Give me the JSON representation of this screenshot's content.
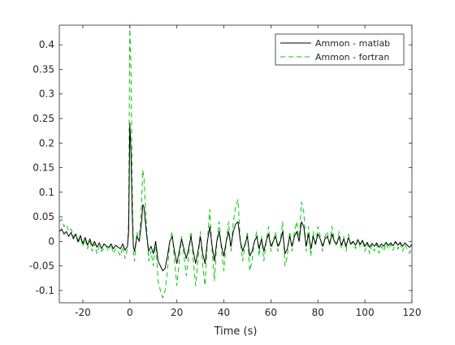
{
  "chart_data": {
    "type": "line",
    "title": "",
    "xlabel": "Time (s)",
    "ylabel": "",
    "xlim": [
      -30,
      120
    ],
    "ylim": [
      -0.125,
      0.44
    ],
    "xticks": [
      -20,
      0,
      20,
      40,
      60,
      80,
      100,
      120
    ],
    "yticks": [
      -0.1,
      -0.05,
      0,
      0.05,
      0.1,
      0.15,
      0.2,
      0.25,
      0.3,
      0.35,
      0.4
    ],
    "xtick_labels": [
      "-20",
      "0",
      "20",
      "40",
      "60",
      "80",
      "100",
      "120"
    ],
    "ytick_labels": [
      "-0.1",
      "-0.05",
      "0",
      "0.05",
      "0.1",
      "0.15",
      "0.2",
      "0.25",
      "0.3",
      "0.35",
      "0.4"
    ],
    "grid": false,
    "legend_position": "top-right",
    "series": [
      {
        "name": "Ammon - matlab",
        "color": "#000000",
        "linestyle": "solid",
        "points": [
          [
            -30,
            0.02
          ],
          [
            -29,
            0.025
          ],
          [
            -28,
            0.015
          ],
          [
            -27,
            0.02
          ],
          [
            -26,
            0.01
          ],
          [
            -25,
            0.018
          ],
          [
            -24,
            0.005
          ],
          [
            -23,
            0.015
          ],
          [
            -22,
            0.0
          ],
          [
            -21,
            0.012
          ],
          [
            -20,
            -0.005
          ],
          [
            -19,
            0.008
          ],
          [
            -18,
            -0.008
          ],
          [
            -17,
            0.005
          ],
          [
            -16,
            -0.01
          ],
          [
            -15,
            0.0
          ],
          [
            -14,
            -0.012
          ],
          [
            -13,
            -0.003
          ],
          [
            -12,
            -0.015
          ],
          [
            -11,
            -0.005
          ],
          [
            -10,
            -0.01
          ],
          [
            -9,
            -0.012
          ],
          [
            -8,
            -0.005
          ],
          [
            -7,
            -0.015
          ],
          [
            -6,
            -0.008
          ],
          [
            -5,
            -0.012
          ],
          [
            -4,
            -0.015
          ],
          [
            -3,
            -0.005
          ],
          [
            -2,
            -0.018
          ],
          [
            -1,
            -0.01
          ],
          [
            -0.5,
            0.02
          ],
          [
            0,
            0.24
          ],
          [
            0.5,
            0.18
          ],
          [
            1,
            0.06
          ],
          [
            1.5,
            -0.01
          ],
          [
            2,
            -0.02
          ],
          [
            3,
            0.01
          ],
          [
            4,
            0.0
          ],
          [
            5,
            0.04
          ],
          [
            5.5,
            0.075
          ],
          [
            6,
            0.07
          ],
          [
            7,
            0.02
          ],
          [
            8,
            -0.02
          ],
          [
            9,
            -0.01
          ],
          [
            10,
            -0.025
          ],
          [
            11,
            0.0
          ],
          [
            12,
            -0.04
          ],
          [
            13,
            -0.05
          ],
          [
            14,
            -0.06
          ],
          [
            15,
            -0.055
          ],
          [
            16,
            -0.03
          ],
          [
            17,
            0.0
          ],
          [
            18,
            0.01
          ],
          [
            19,
            -0.02
          ],
          [
            20,
            -0.045
          ],
          [
            21,
            -0.02
          ],
          [
            22,
            0.005
          ],
          [
            23,
            -0.015
          ],
          [
            24,
            -0.035
          ],
          [
            25,
            -0.015
          ],
          [
            26,
            0.01
          ],
          [
            27,
            -0.02
          ],
          [
            28,
            -0.045
          ],
          [
            29,
            -0.02
          ],
          [
            30,
            0.01
          ],
          [
            31,
            -0.025
          ],
          [
            32,
            -0.045
          ],
          [
            33,
            0.0
          ],
          [
            34,
            0.03
          ],
          [
            35,
            -0.01
          ],
          [
            36,
            -0.04
          ],
          [
            37,
            0.0
          ],
          [
            38,
            0.02
          ],
          [
            39,
            -0.01
          ],
          [
            40,
            -0.03
          ],
          [
            41,
            0.0
          ],
          [
            42,
            0.02
          ],
          [
            43,
            -0.01
          ],
          [
            44,
            0.02
          ],
          [
            45,
            0.035
          ],
          [
            46,
            0.04
          ],
          [
            47,
            0.0
          ],
          [
            48,
            -0.02
          ],
          [
            49,
            -0.005
          ],
          [
            50,
            0.01
          ],
          [
            51,
            -0.03
          ],
          [
            52,
            -0.02
          ],
          [
            53,
            0.0
          ],
          [
            54,
            0.01
          ],
          [
            55,
            -0.015
          ],
          [
            56,
            0.005
          ],
          [
            57,
            -0.02
          ],
          [
            58,
            0.0
          ],
          [
            59,
            0.015
          ],
          [
            60,
            -0.01
          ],
          [
            61,
            0.0
          ],
          [
            62,
            0.01
          ],
          [
            63,
            -0.01
          ],
          [
            64,
            0.0
          ],
          [
            65,
            0.02
          ],
          [
            66,
            -0.025
          ],
          [
            67,
            -0.015
          ],
          [
            68,
            0.01
          ],
          [
            69,
            -0.01
          ],
          [
            70,
            0.01
          ],
          [
            71,
            0.02
          ],
          [
            72,
            0.0
          ],
          [
            73,
            0.04
          ],
          [
            74,
            0.03
          ],
          [
            75,
            -0.01
          ],
          [
            76,
            0.015
          ],
          [
            77,
            -0.015
          ],
          [
            78,
            0.01
          ],
          [
            79,
            -0.005
          ],
          [
            80,
            0.015
          ],
          [
            81,
            0.005
          ],
          [
            82,
            -0.01
          ],
          [
            83,
            0.005
          ],
          [
            84,
            0.01
          ],
          [
            85,
            -0.005
          ],
          [
            86,
            0.015
          ],
          [
            87,
            0.0
          ],
          [
            88,
            -0.005
          ],
          [
            89,
            0.01
          ],
          [
            90,
            -0.008
          ],
          [
            91,
            0.005
          ],
          [
            92,
            -0.01
          ],
          [
            93,
            0.008
          ],
          [
            94,
            -0.005
          ],
          [
            95,
            0.0
          ],
          [
            96,
            -0.008
          ],
          [
            97,
            0.003
          ],
          [
            98,
            -0.006
          ],
          [
            99,
            0.002
          ],
          [
            100,
            -0.01
          ],
          [
            101,
            -0.002
          ],
          [
            102,
            -0.012
          ],
          [
            103,
            -0.004
          ],
          [
            104,
            -0.01
          ],
          [
            105,
            -0.003
          ],
          [
            106,
            -0.012
          ],
          [
            107,
            -0.005
          ],
          [
            108,
            -0.01
          ],
          [
            109,
            -0.002
          ],
          [
            110,
            -0.008
          ],
          [
            111,
            -0.003
          ],
          [
            112,
            -0.009
          ],
          [
            113,
            0.0
          ],
          [
            114,
            -0.008
          ],
          [
            115,
            -0.002
          ],
          [
            116,
            -0.01
          ],
          [
            117,
            -0.003
          ],
          [
            118,
            -0.008
          ],
          [
            119,
            -0.012
          ],
          [
            120,
            -0.006
          ]
        ]
      },
      {
        "name": "Ammon - fortran",
        "color": "#00c800",
        "linestyle": "dashed",
        "points": [
          [
            -30,
            0.04
          ],
          [
            -29,
            0.045
          ],
          [
            -28,
            0.03
          ],
          [
            -27,
            0.035
          ],
          [
            -26,
            0.02
          ],
          [
            -25,
            0.025
          ],
          [
            -24,
            0.01
          ],
          [
            -23,
            0.015
          ],
          [
            -22,
            -0.005
          ],
          [
            -21,
            0.01
          ],
          [
            -20,
            -0.01
          ],
          [
            -19,
            0.005
          ],
          [
            -18,
            -0.015
          ],
          [
            -17,
            0.0
          ],
          [
            -16,
            -0.02
          ],
          [
            -15,
            -0.005
          ],
          [
            -14,
            -0.025
          ],
          [
            -13,
            -0.01
          ],
          [
            -12,
            -0.02
          ],
          [
            -11,
            -0.015
          ],
          [
            -10,
            -0.01
          ],
          [
            -9,
            -0.02
          ],
          [
            -8,
            -0.005
          ],
          [
            -7,
            -0.025
          ],
          [
            -6,
            -0.015
          ],
          [
            -5,
            -0.02
          ],
          [
            -4,
            -0.03
          ],
          [
            -3,
            -0.01
          ],
          [
            -2,
            -0.035
          ],
          [
            -1,
            -0.015
          ],
          [
            -0.5,
            0.05
          ],
          [
            0,
            0.44
          ],
          [
            0.5,
            0.35
          ],
          [
            1,
            0.12
          ],
          [
            1.5,
            -0.02
          ],
          [
            2,
            -0.04
          ],
          [
            3,
            0.02
          ],
          [
            4,
            0.0
          ],
          [
            5,
            0.08
          ],
          [
            5.5,
            0.145
          ],
          [
            6,
            0.13
          ],
          [
            7,
            0.04
          ],
          [
            8,
            -0.04
          ],
          [
            9,
            -0.02
          ],
          [
            10,
            -0.05
          ],
          [
            11,
            0.0
          ],
          [
            12,
            -0.08
          ],
          [
            13,
            -0.1
          ],
          [
            14,
            -0.115
          ],
          [
            15,
            -0.1
          ],
          [
            16,
            -0.06
          ],
          [
            17,
            0.0
          ],
          [
            18,
            0.02
          ],
          [
            19,
            -0.04
          ],
          [
            20,
            -0.09
          ],
          [
            21,
            -0.04
          ],
          [
            22,
            0.01
          ],
          [
            23,
            -0.03
          ],
          [
            24,
            -0.07
          ],
          [
            25,
            -0.03
          ],
          [
            26,
            0.02
          ],
          [
            27,
            -0.04
          ],
          [
            28,
            -0.09
          ],
          [
            29,
            -0.04
          ],
          [
            30,
            0.02
          ],
          [
            31,
            -0.05
          ],
          [
            32,
            -0.09
          ],
          [
            33,
            0.0
          ],
          [
            34,
            0.065
          ],
          [
            35,
            -0.02
          ],
          [
            36,
            -0.08
          ],
          [
            37,
            0.0
          ],
          [
            38,
            0.04
          ],
          [
            39,
            -0.02
          ],
          [
            40,
            -0.06
          ],
          [
            41,
            0.0
          ],
          [
            42,
            0.04
          ],
          [
            43,
            -0.02
          ],
          [
            44,
            0.04
          ],
          [
            45,
            0.07
          ],
          [
            46,
            0.085
          ],
          [
            47,
            0.0
          ],
          [
            48,
            -0.04
          ],
          [
            49,
            -0.01
          ],
          [
            50,
            0.02
          ],
          [
            51,
            -0.06
          ],
          [
            52,
            -0.04
          ],
          [
            53,
            0.0
          ],
          [
            54,
            0.02
          ],
          [
            55,
            -0.03
          ],
          [
            56,
            0.01
          ],
          [
            57,
            -0.04
          ],
          [
            58,
            0.0
          ],
          [
            59,
            0.03
          ],
          [
            60,
            -0.02
          ],
          [
            61,
            0.0
          ],
          [
            62,
            0.02
          ],
          [
            63,
            -0.02
          ],
          [
            64,
            0.0
          ],
          [
            65,
            0.04
          ],
          [
            66,
            -0.05
          ],
          [
            67,
            -0.03
          ],
          [
            68,
            0.02
          ],
          [
            69,
            -0.02
          ],
          [
            70,
            0.02
          ],
          [
            71,
            0.04
          ],
          [
            72,
            0.0
          ],
          [
            73,
            0.08
          ],
          [
            74,
            0.06
          ],
          [
            75,
            -0.02
          ],
          [
            76,
            0.03
          ],
          [
            77,
            -0.03
          ],
          [
            78,
            0.02
          ],
          [
            79,
            -0.01
          ],
          [
            80,
            0.03
          ],
          [
            81,
            0.01
          ],
          [
            82,
            -0.02
          ],
          [
            83,
            0.01
          ],
          [
            84,
            0.02
          ],
          [
            85,
            -0.01
          ],
          [
            86,
            0.03
          ],
          [
            87,
            0.0
          ],
          [
            88,
            -0.01
          ],
          [
            89,
            0.02
          ],
          [
            90,
            -0.015
          ],
          [
            91,
            0.01
          ],
          [
            92,
            -0.02
          ],
          [
            93,
            0.015
          ],
          [
            94,
            -0.01
          ],
          [
            95,
            0.0
          ],
          [
            96,
            -0.015
          ],
          [
            97,
            0.005
          ],
          [
            98,
            -0.012
          ],
          [
            99,
            0.004
          ],
          [
            100,
            -0.02
          ],
          [
            101,
            -0.004
          ],
          [
            102,
            -0.025
          ],
          [
            103,
            -0.008
          ],
          [
            104,
            -0.02
          ],
          [
            105,
            -0.006
          ],
          [
            106,
            -0.024
          ],
          [
            107,
            -0.01
          ],
          [
            108,
            -0.02
          ],
          [
            109,
            -0.004
          ],
          [
            110,
            -0.016
          ],
          [
            111,
            -0.006
          ],
          [
            112,
            -0.018
          ],
          [
            113,
            0.0
          ],
          [
            114,
            -0.016
          ],
          [
            115,
            -0.004
          ],
          [
            116,
            -0.02
          ],
          [
            117,
            -0.006
          ],
          [
            118,
            -0.016
          ],
          [
            119,
            -0.024
          ],
          [
            120,
            -0.012
          ]
        ]
      }
    ]
  }
}
